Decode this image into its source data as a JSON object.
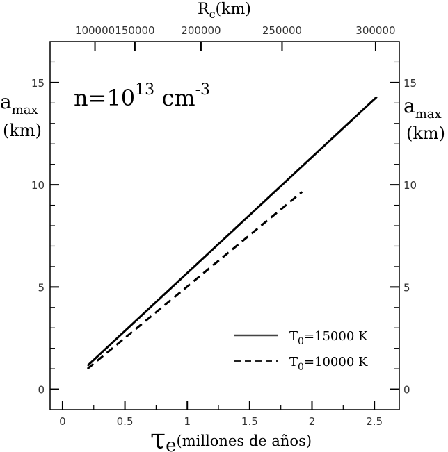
{
  "chart_data": {
    "type": "line",
    "xlabel_symbol": "τ",
    "xlabel_subscript": "e",
    "xlabel_unit": "(millones de años)",
    "top_axis_label_main": "R",
    "top_axis_label_sub": "c",
    "top_axis_label_unit": "(km)",
    "ylabel_left_main": "a",
    "ylabel_left_sub": "max",
    "ylabel_left_unit": "(km)",
    "ylabel_right_main": "a",
    "ylabel_right_sub": "max",
    "ylabel_right_unit": "(km)",
    "annotation": {
      "prefix": "n=10",
      "exponent": "13",
      "unit": " cm",
      "unit_exponent": "-3"
    },
    "xlim": [
      -0.1,
      2.7
    ],
    "ylim": [
      -1,
      17
    ],
    "x_ticks": [
      0,
      0.5,
      1,
      1.5,
      2,
      2.5
    ],
    "x_tick_labels": [
      "0",
      "0.5",
      "1",
      "1.5",
      "2",
      "2.5"
    ],
    "y_ticks": [
      0,
      5,
      10,
      15
    ],
    "y_tick_labels": [
      "0",
      "5",
      "10",
      "15"
    ],
    "top_ticks": [
      {
        "label": "100000",
        "x": 0.26
      },
      {
        "label": "150000",
        "x": 0.58
      },
      {
        "label": "200000",
        "x": 1.11
      },
      {
        "label": "250000",
        "x": 1.76
      },
      {
        "label": "300000",
        "x": 2.51
      }
    ],
    "series": [
      {
        "name": "T0=15000 K",
        "legend_main": "T",
        "legend_sub": "0",
        "legend_rest": "=15000 K",
        "style": "solid",
        "color": "#000000",
        "points": [
          [
            0.2,
            1.15
          ],
          [
            2.52,
            14.3
          ]
        ]
      },
      {
        "name": "T0=10000 K",
        "legend_main": "T",
        "legend_sub": "0",
        "legend_rest": "=10000 K",
        "style": "dashed",
        "color": "#000000",
        "points": [
          [
            0.2,
            1.0
          ],
          [
            1.92,
            9.65
          ]
        ]
      }
    ],
    "legend_position": "bottom-right",
    "grid": false
  }
}
